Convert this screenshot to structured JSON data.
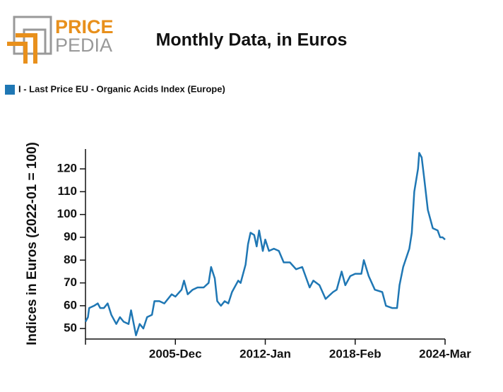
{
  "logo": {
    "part1": "PRICE",
    "part2": "PEDIA"
  },
  "chart_data": {
    "type": "line",
    "title": "Monthly Data, in Euros",
    "ylabel": "Indices in Euros (2022-01 = 100)",
    "x": [
      "1999-Nov",
      "2000-Jan",
      "2000-Feb",
      "2000-Jun",
      "2000-Sep",
      "2000-Nov",
      "2001-Feb",
      "2001-May",
      "2001-Aug",
      "2001-Dec",
      "2002-Mar",
      "2002-Jun",
      "2002-Oct",
      "2002-Dec",
      "2003-Apr",
      "2003-Jul",
      "2003-Oct",
      "2004-Jan",
      "2004-May",
      "2004-Jul",
      "2004-Nov",
      "2005-Mar",
      "2005-Sep",
      "2005-Dec",
      "2006-May",
      "2006-Jul",
      "2006-Oct",
      "2007-Feb",
      "2007-Jun",
      "2007-Nov",
      "2008-Mar",
      "2008-May",
      "2008-Aug",
      "2008-Oct",
      "2009-Jan",
      "2009-Apr",
      "2009-Jul",
      "2009-Oct",
      "2010-Mar",
      "2010-May",
      "2010-Sep",
      "2010-Nov",
      "2011-Jan",
      "2011-Apr",
      "2011-Jun",
      "2011-Aug",
      "2011-Nov",
      "2012-Jan",
      "2012-Apr",
      "2012-Aug",
      "2012-Dec",
      "2013-Apr",
      "2013-Sep",
      "2014-Feb",
      "2014-Jul",
      "2015-Jan",
      "2015-Apr",
      "2015-Sep",
      "2016-Feb",
      "2016-Aug",
      "2016-Nov",
      "2017-Mar",
      "2017-Jun",
      "2017-Oct",
      "2018-Feb",
      "2018-Jul",
      "2018-Sep",
      "2019-Jan",
      "2019-Jun",
      "2019-Dec",
      "2020-Mar",
      "2020-Aug",
      "2020-Dec",
      "2021-Feb",
      "2021-May",
      "2021-Oct",
      "2021-Dec",
      "2022-Feb",
      "2022-May",
      "2022-Jun",
      "2022-Aug",
      "2022-Oct",
      "2023-Jan",
      "2023-May",
      "2023-Sep",
      "2023-Nov",
      "2024-Jan",
      "2024-Mar"
    ],
    "series": [
      {
        "name": "I - Last Price EU - Organic Acids Index (Europe)",
        "color": "#1f77b4",
        "values": [
          53,
          55,
          59,
          60,
          61,
          59,
          59,
          61,
          56,
          52,
          55,
          53,
          52,
          58,
          47,
          52,
          50,
          55,
          56,
          62,
          62,
          61,
          65,
          64,
          67,
          71,
          65,
          67,
          68,
          68,
          70,
          77,
          72,
          62,
          60,
          62,
          61,
          66,
          71,
          70,
          78,
          87,
          92,
          91,
          86,
          93,
          84,
          89,
          84,
          85,
          84,
          79,
          79,
          76,
          77,
          68,
          71,
          69,
          63,
          66,
          67,
          75,
          69,
          73,
          74,
          74,
          80,
          73,
          67,
          66,
          60,
          59,
          59,
          69,
          77,
          85,
          92,
          110,
          120,
          127,
          125,
          116,
          102,
          94,
          93,
          90,
          90,
          89
        ]
      }
    ],
    "xlim": [
      "1999-Nov",
      "2024-Mar"
    ],
    "xticks": [
      "2005-Dec",
      "2012-Jan",
      "2018-Feb",
      "2024-Mar"
    ],
    "ylim": [
      45.4,
      128.7
    ],
    "yticks": [
      50,
      60,
      70,
      80,
      90,
      100,
      110,
      120
    ],
    "legend": "top-left"
  }
}
